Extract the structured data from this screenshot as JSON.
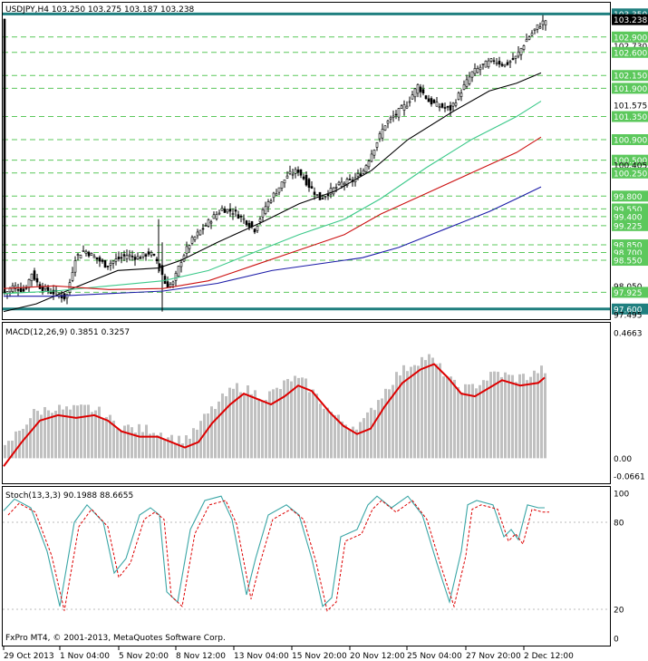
{
  "main_panel": {
    "header": "USDJPY,H4  103.250 103.275 103.187 103.238",
    "price_labels": [
      {
        "value": 103.35,
        "text": "103.350",
        "kind": "highlight"
      },
      {
        "value": 103.238,
        "text": "103.238",
        "kind": "current"
      },
      {
        "value": 102.9,
        "text": "102.900",
        "kind": "level"
      },
      {
        "value": 102.73,
        "text": "102.730",
        "kind": "axis"
      },
      {
        "value": 102.6,
        "text": "102.600",
        "kind": "level"
      },
      {
        "value": 102.15,
        "text": "102.150",
        "kind": "level"
      },
      {
        "value": 101.9,
        "text": "101.900",
        "kind": "level"
      },
      {
        "value": 101.575,
        "text": "101.575",
        "kind": "axis"
      },
      {
        "value": 101.35,
        "text": "101.350",
        "kind": "level"
      },
      {
        "value": 100.9,
        "text": "100.900",
        "kind": "level"
      },
      {
        "value": 100.5,
        "text": "100.500",
        "kind": "level"
      },
      {
        "value": 100.405,
        "text": "100.405",
        "kind": "axis"
      },
      {
        "value": 100.25,
        "text": "100.250",
        "kind": "level"
      },
      {
        "value": 99.8,
        "text": "99.800",
        "kind": "level"
      },
      {
        "value": 99.55,
        "text": "99.550",
        "kind": "level"
      },
      {
        "value": 99.4,
        "text": "99.400",
        "kind": "level"
      },
      {
        "value": 99.225,
        "text": "99.225",
        "kind": "level"
      },
      {
        "value": 98.85,
        "text": "98.850",
        "kind": "level"
      },
      {
        "value": 98.7,
        "text": "98.700",
        "kind": "level"
      },
      {
        "value": 98.55,
        "text": "98.550",
        "kind": "level"
      },
      {
        "value": 98.05,
        "text": "98.050",
        "kind": "axis"
      },
      {
        "value": 97.925,
        "text": "97.925",
        "kind": "level"
      },
      {
        "value": 97.6,
        "text": "97.600",
        "kind": "highlight"
      },
      {
        "value": 97.495,
        "text": "97.495",
        "kind": "axis"
      }
    ],
    "colors": {
      "candle": "#000000",
      "ma_fast": "#000000",
      "ma_mid": "#3cc98a",
      "ma_slow": "#cc1111",
      "ma_long": "#1c1ca8",
      "level": "#5cc85c",
      "highlight": "#1f7f7f"
    }
  },
  "macd_panel": {
    "header": "MACD(12,26,9) 0.3851 0.3257",
    "axis_labels": [
      {
        "value": 0.4663,
        "text": "0.4663"
      },
      {
        "value": 0.0,
        "text": "0.00"
      },
      {
        "value": -0.0661,
        "text": "-0.0661"
      }
    ],
    "colors": {
      "histogram": "#c0c0c0",
      "signal": "#dd0000"
    }
  },
  "stoch_panel": {
    "header": "Stoch(13,3,3) 90.1988 88.6655",
    "axis_labels": [
      {
        "value": 100,
        "text": "100"
      },
      {
        "value": 80,
        "text": "80"
      },
      {
        "value": 20,
        "text": "20"
      },
      {
        "value": 0,
        "text": "0"
      }
    ],
    "copyright": "FxPro MT4, © 2001-2013, MetaQuotes Software Corp.",
    "colors": {
      "main": "#3aa6a6",
      "signal": "#dd0000"
    }
  },
  "time_axis": [
    "29 Oct 2013",
    "1 Nov 04:00",
    "5 Nov 20:00",
    "8 Nov 12:00",
    "13 Nov 04:00",
    "15 Nov 20:00",
    "20 Nov 12:00",
    "25 Nov 04:00",
    "27 Nov 20:00",
    "2 Dec 12:00"
  ]
}
